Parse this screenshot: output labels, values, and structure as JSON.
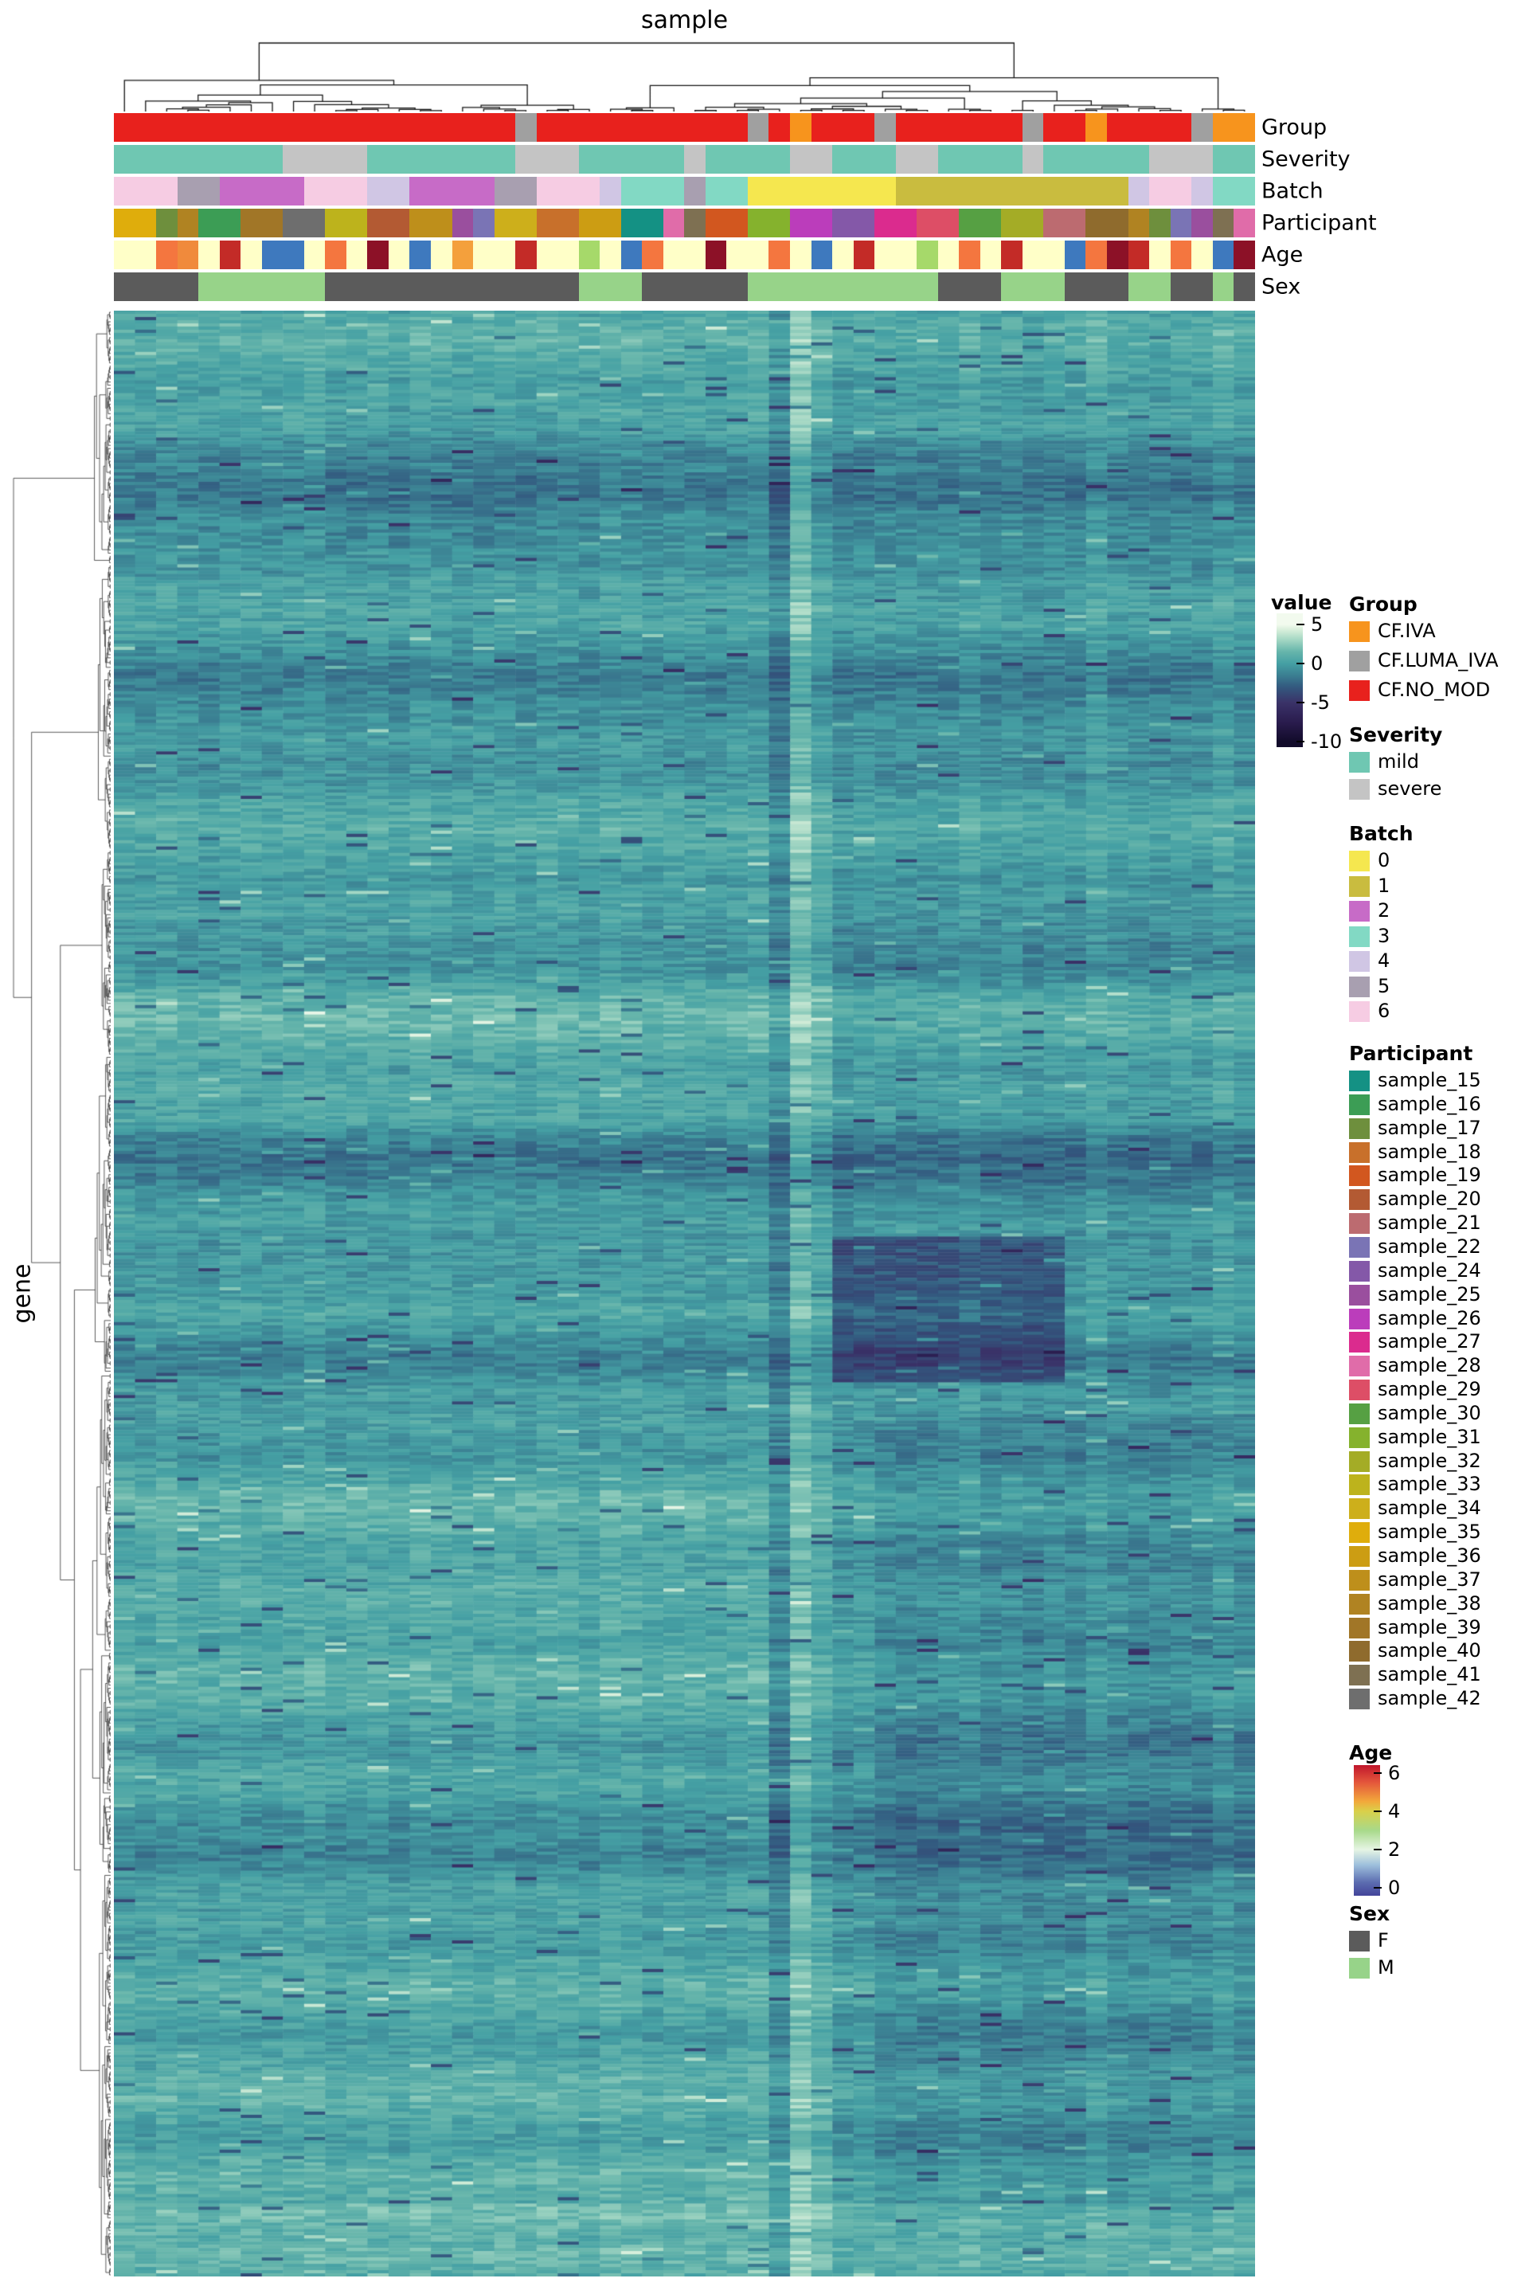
{
  "chart_data": {
    "type": "heatmap",
    "x_title": "sample",
    "y_title": "gene",
    "value_label": "value",
    "legend_position": "right",
    "heatmap": {
      "rows": 620,
      "cols": 54,
      "seed": 1337,
      "value_domain": [
        -10,
        5
      ],
      "colormap_stops": [
        [
          -10,
          "#120B2A"
        ],
        [
          -7.5,
          "#2A1C4E"
        ],
        [
          -5,
          "#3A3268"
        ],
        [
          -3,
          "#33597F"
        ],
        [
          -1.5,
          "#3B7F92"
        ],
        [
          0,
          "#45A0A4"
        ],
        [
          1.5,
          "#66B5AB"
        ],
        [
          3,
          "#A2D6C3"
        ],
        [
          4.3,
          "#D8EFDB"
        ],
        [
          5,
          "#F2FAEE"
        ]
      ],
      "col_offsets": [
        0.1,
        -0.1,
        0.2,
        0,
        -0.2,
        0.15,
        0,
        -0.1,
        0.1,
        0.2,
        -0.15,
        0,
        0.1,
        -0.2,
        0.25,
        0.1,
        -0.1,
        0,
        0.15,
        -0.1,
        0.2,
        0.1,
        -0.2,
        0.3,
        0.2,
        -0.1,
        0.1,
        0,
        -0.15,
        0.1,
        0.3,
        -1.2,
        1.6,
        0.5,
        -0.5,
        -0.3,
        -0.2,
        -0.35,
        -0.3,
        -0.25,
        0.2,
        -0.3,
        -0.2,
        -0.4,
        -0.25,
        -0.3,
        0.35,
        -0.2,
        -0.3,
        -0.35,
        -0.2,
        -0.25,
        0.3,
        -0.2
      ],
      "features": [
        {
          "c0": 34,
          "c1": 44,
          "r0": 0.47,
          "r1": 0.545,
          "dv": -2.6
        },
        {
          "c0": 36,
          "c1": 53,
          "r0": 0.56,
          "r1": 0.97,
          "dv": -0.85
        },
        {
          "c0": 34,
          "c1": 53,
          "r0": 0.3,
          "r1": 0.46,
          "dv": -0.35
        },
        {
          "c0": 0,
          "c1": 53,
          "r0": 0.962,
          "r1": 1.0,
          "dv": 1.5
        },
        {
          "c0": 0,
          "c1": 30,
          "r0": 0.6,
          "r1": 0.78,
          "dv": 0.45
        },
        {
          "c0": 0,
          "c1": 33,
          "r0": 0.86,
          "r1": 0.95,
          "dv": 0.35
        },
        {
          "c0": 10,
          "c1": 20,
          "r0": 0.05,
          "r1": 0.12,
          "dv": -0.4
        },
        {
          "c0": 32,
          "c1": 32,
          "r0": 0.0,
          "r1": 0.3,
          "dv": 0.5
        }
      ]
    },
    "annotations": {
      "tracks": [
        {
          "id": "Group",
          "type": "cat",
          "palette": {
            "CF.IVA": "#F7941D",
            "CF.LUMA_IVA": "#A0A0A0",
            "CF.NO_MOD": "#E8211D"
          },
          "values": [
            "CF.NO_MOD",
            "CF.NO_MOD",
            "CF.NO_MOD",
            "CF.NO_MOD",
            "CF.NO_MOD",
            "CF.NO_MOD",
            "CF.NO_MOD",
            "CF.NO_MOD",
            "CF.NO_MOD",
            "CF.NO_MOD",
            "CF.NO_MOD",
            "CF.NO_MOD",
            "CF.NO_MOD",
            "CF.NO_MOD",
            "CF.NO_MOD",
            "CF.NO_MOD",
            "CF.NO_MOD",
            "CF.NO_MOD",
            "CF.NO_MOD",
            "CF.LUMA_IVA",
            "CF.NO_MOD",
            "CF.NO_MOD",
            "CF.NO_MOD",
            "CF.NO_MOD",
            "CF.NO_MOD",
            "CF.NO_MOD",
            "CF.NO_MOD",
            "CF.NO_MOD",
            "CF.NO_MOD",
            "CF.NO_MOD",
            "CF.LUMA_IVA",
            "CF.NO_MOD",
            "CF.IVA",
            "CF.NO_MOD",
            "CF.NO_MOD",
            "CF.NO_MOD",
            "CF.LUMA_IVA",
            "CF.NO_MOD",
            "CF.NO_MOD",
            "CF.NO_MOD",
            "CF.NO_MOD",
            "CF.NO_MOD",
            "CF.NO_MOD",
            "CF.LUMA_IVA",
            "CF.NO_MOD",
            "CF.NO_MOD",
            "CF.IVA",
            "CF.NO_MOD",
            "CF.NO_MOD",
            "CF.NO_MOD",
            "CF.NO_MOD",
            "CF.LUMA_IVA",
            "CF.IVA",
            "CF.IVA"
          ]
        },
        {
          "id": "Severity",
          "type": "cat",
          "palette": {
            "mild": "#6FC7B2",
            "severe": "#C4C4C4"
          },
          "values": [
            "mild",
            "mild",
            "mild",
            "mild",
            "mild",
            "mild",
            "mild",
            "mild",
            "severe",
            "severe",
            "severe",
            "severe",
            "mild",
            "mild",
            "mild",
            "mild",
            "mild",
            "mild",
            "mild",
            "severe",
            "severe",
            "severe",
            "mild",
            "mild",
            "mild",
            "mild",
            "mild",
            "severe",
            "mild",
            "mild",
            "mild",
            "mild",
            "severe",
            "severe",
            "mild",
            "mild",
            "mild",
            "severe",
            "severe",
            "mild",
            "mild",
            "mild",
            "mild",
            "severe",
            "mild",
            "mild",
            "mild",
            "mild",
            "mild",
            "severe",
            "severe",
            "severe",
            "mild",
            "mild"
          ]
        },
        {
          "id": "Batch",
          "type": "cat",
          "palette": {
            "0": "#F5E74F",
            "1": "#C9BC3F",
            "2": "#C76BC7",
            "3": "#82D9C4",
            "4": "#D0C6E4",
            "5": "#A89FB0",
            "6": "#F6CCE3"
          },
          "values": [
            "6",
            "6",
            "6",
            "5",
            "5",
            "2",
            "2",
            "2",
            "2",
            "6",
            "6",
            "6",
            "4",
            "4",
            "2",
            "2",
            "2",
            "2",
            "5",
            "5",
            "6",
            "6",
            "6",
            "4",
            "3",
            "3",
            "3",
            "5",
            "3",
            "3",
            "0",
            "0",
            "0",
            "0",
            "0",
            "0",
            "0",
            "1",
            "1",
            "1",
            "1",
            "1",
            "1",
            "1",
            "1",
            "1",
            "1",
            "1",
            "4",
            "6",
            "6",
            "4",
            "3",
            "3"
          ]
        },
        {
          "id": "Participant",
          "type": "cat",
          "palette": {
            "sample_15": "#149184",
            "sample_16": "#3C9D55",
            "sample_17": "#6E8F3D",
            "sample_18": "#C8702B",
            "sample_19": "#D2571F",
            "sample_20": "#B35A33",
            "sample_21": "#BC6B70",
            "sample_22": "#7A74B5",
            "sample_24": "#8458A8",
            "sample_25": "#9A4F9E",
            "sample_26": "#BB3DBB",
            "sample_27": "#DB2B8E",
            "sample_28": "#E06CA9",
            "sample_29": "#DD4E66",
            "sample_30": "#56A043",
            "sample_31": "#85B22D",
            "sample_32": "#A4AC26",
            "sample_33": "#BDB31C",
            "sample_34": "#CDAF1B",
            "sample_35": "#DFAD0C",
            "sample_36": "#CC9D13",
            "sample_37": "#BE8F1B",
            "sample_38": "#B08322",
            "sample_39": "#A17627",
            "sample_40": "#8F6B2D",
            "sample_41": "#7E7052",
            "sample_42": "#6E6E6E"
          },
          "values": [
            "sample_35",
            "sample_35",
            "sample_17",
            "sample_38",
            "sample_16",
            "sample_16",
            "sample_39",
            "sample_39",
            "sample_42",
            "sample_42",
            "sample_33",
            "sample_33",
            "sample_20",
            "sample_20",
            "sample_37",
            "sample_37",
            "sample_25",
            "sample_22",
            "sample_34",
            "sample_34",
            "sample_18",
            "sample_18",
            "sample_36",
            "sample_36",
            "sample_15",
            "sample_15",
            "sample_28",
            "sample_41",
            "sample_19",
            "sample_19",
            "sample_31",
            "sample_31",
            "sample_26",
            "sample_26",
            "sample_24",
            "sample_24",
            "sample_27",
            "sample_27",
            "sample_29",
            "sample_29",
            "sample_30",
            "sample_30",
            "sample_32",
            "sample_32",
            "sample_21",
            "sample_21",
            "sample_40",
            "sample_40",
            "sample_38",
            "sample_17",
            "sample_22",
            "sample_25",
            "sample_41",
            "sample_28"
          ]
        },
        {
          "id": "Age",
          "type": "color",
          "colors": [
            "#FFFFC8",
            "#FFFFC8",
            "#F4763F",
            "#F08A3C",
            "#FFFFC8",
            "#C32B27",
            "#FFFFC8",
            "#3E79BE",
            "#3E79BE",
            "#FFFFC8",
            "#F4763F",
            "#FFFFC8",
            "#8C1127",
            "#FFFFC8",
            "#3E79BE",
            "#FFFFC8",
            "#F4A03C",
            "#FFFFC8",
            "#FFFFC8",
            "#C32B27",
            "#FFFFC8",
            "#FFFFC8",
            "#A6D96A",
            "#FFFFC8",
            "#3E79BE",
            "#F4763F",
            "#FFFFC8",
            "#FFFFC8",
            "#8C1127",
            "#FFFFC8",
            "#FFFFC8",
            "#F4763F",
            "#FFFFC8",
            "#3E79BE",
            "#FFFFC8",
            "#C32B27",
            "#FFFFC8",
            "#FFFFC8",
            "#A6D96A",
            "#FFFFC8",
            "#F4763F",
            "#FFFFC8",
            "#C32B27",
            "#FFFFC8",
            "#FFFFC8",
            "#3E79BE",
            "#F4763F",
            "#8C1127",
            "#C32B27",
            "#FFFFC8",
            "#F4763F",
            "#FFFFC8",
            "#3E79BE",
            "#8C1127"
          ]
        },
        {
          "id": "Sex",
          "type": "cat",
          "palette": {
            "F": "#5B5B5B",
            "M": "#97D389"
          },
          "values": [
            "F",
            "F",
            "F",
            "F",
            "M",
            "M",
            "M",
            "M",
            "M",
            "M",
            "F",
            "F",
            "F",
            "F",
            "F",
            "F",
            "F",
            "F",
            "F",
            "F",
            "F",
            "F",
            "M",
            "M",
            "M",
            "F",
            "F",
            "F",
            "F",
            "F",
            "M",
            "M",
            "M",
            "M",
            "M",
            "M",
            "M",
            "M",
            "M",
            "F",
            "F",
            "F",
            "M",
            "M",
            "M",
            "F",
            "F",
            "F",
            "M",
            "M",
            "F",
            "F",
            "M",
            "F"
          ]
        }
      ]
    },
    "legends": {
      "value": {
        "title": "value",
        "ticks": [
          5,
          0,
          -5,
          -10
        ],
        "domain": [
          6.4,
          -10.7
        ]
      },
      "group": {
        "title": "Group",
        "items": [
          [
            "CF.IVA",
            "#F7941D"
          ],
          [
            "CF.LUMA_IVA",
            "#A0A0A0"
          ],
          [
            "CF.NO_MOD",
            "#E8211D"
          ]
        ]
      },
      "severity": {
        "title": "Severity",
        "items": [
          [
            "mild",
            "#6FC7B2"
          ],
          [
            "severe",
            "#C4C4C4"
          ]
        ]
      },
      "batch": {
        "title": "Batch",
        "items": [
          [
            "0",
            "#F5E74F"
          ],
          [
            "1",
            "#C9BC3F"
          ],
          [
            "2",
            "#C76BC7"
          ],
          [
            "3",
            "#82D9C4"
          ],
          [
            "4",
            "#D0C6E4"
          ],
          [
            "5",
            "#A89FB0"
          ],
          [
            "6",
            "#F6CCE3"
          ]
        ]
      },
      "participant": {
        "title": "Participant",
        "items": [
          [
            "sample_15",
            "#149184"
          ],
          [
            "sample_16",
            "#3C9D55"
          ],
          [
            "sample_17",
            "#6E8F3D"
          ],
          [
            "sample_18",
            "#C8702B"
          ],
          [
            "sample_19",
            "#D2571F"
          ],
          [
            "sample_20",
            "#B35A33"
          ],
          [
            "sample_21",
            "#BC6B70"
          ],
          [
            "sample_22",
            "#7A74B5"
          ],
          [
            "sample_24",
            "#8458A8"
          ],
          [
            "sample_25",
            "#9A4F9E"
          ],
          [
            "sample_26",
            "#BB3DBB"
          ],
          [
            "sample_27",
            "#DB2B8E"
          ],
          [
            "sample_28",
            "#E06CA9"
          ],
          [
            "sample_29",
            "#DD4E66"
          ],
          [
            "sample_30",
            "#56A043"
          ],
          [
            "sample_31",
            "#85B22D"
          ],
          [
            "sample_32",
            "#A4AC26"
          ],
          [
            "sample_33",
            "#BDB31C"
          ],
          [
            "sample_34",
            "#CDAF1B"
          ],
          [
            "sample_35",
            "#DFAD0C"
          ],
          [
            "sample_36",
            "#CC9D13"
          ],
          [
            "sample_37",
            "#BE8F1B"
          ],
          [
            "sample_38",
            "#B08322"
          ],
          [
            "sample_39",
            "#A17627"
          ],
          [
            "sample_40",
            "#8F6B2D"
          ],
          [
            "sample_41",
            "#7E7052"
          ],
          [
            "sample_42",
            "#6E6E6E"
          ]
        ]
      },
      "age": {
        "title": "Age",
        "ticks": [
          6,
          4,
          2,
          0
        ],
        "domain": [
          6.4,
          -0.4
        ],
        "stops": [
          [
            -0.4,
            "#43449A"
          ],
          [
            0.3,
            "#5C6DB0"
          ],
          [
            1.2,
            "#9DBFDC"
          ],
          [
            2,
            "#E6F5E4"
          ],
          [
            3,
            "#A8D98A"
          ],
          [
            4,
            "#D9D04A"
          ],
          [
            4.5,
            "#F2A93B"
          ],
          [
            5.5,
            "#E4563B"
          ],
          [
            6.4,
            "#C0162C"
          ]
        ]
      },
      "sex": {
        "title": "Sex",
        "items": [
          [
            "F",
            "#5B5B5B"
          ],
          [
            "M",
            "#97D389"
          ]
        ]
      }
    }
  }
}
